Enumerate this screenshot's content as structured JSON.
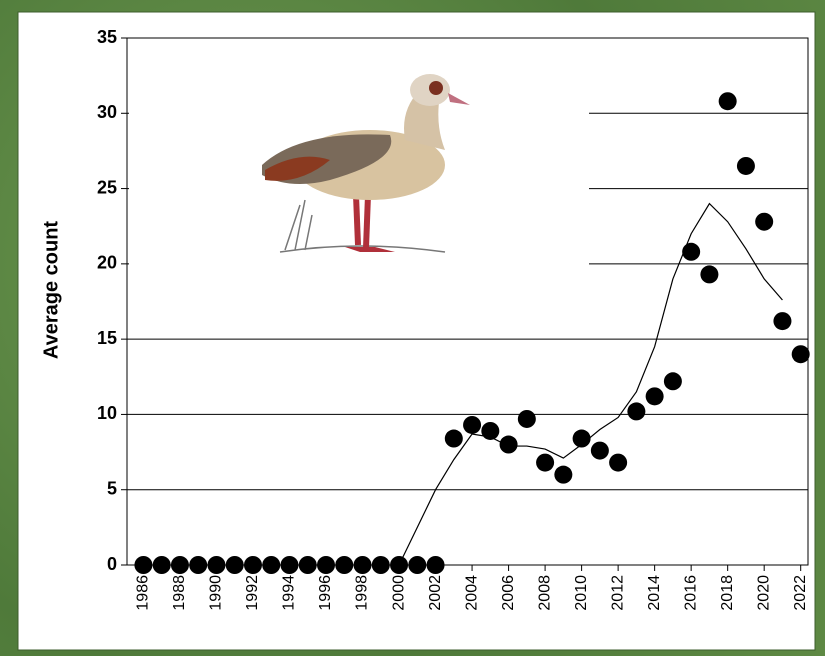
{
  "chart_data": {
    "type": "scatter",
    "ylabel": "Average count",
    "x": [
      1986,
      1987,
      1988,
      1989,
      1990,
      1991,
      1992,
      1993,
      1994,
      1995,
      1996,
      1997,
      1998,
      1999,
      2000,
      2001,
      2002,
      2003,
      2004,
      2005,
      2006,
      2007,
      2008,
      2009,
      2010,
      2011,
      2012,
      2013,
      2014,
      2015,
      2016,
      2017,
      2018,
      2019,
      2020,
      2021,
      2022
    ],
    "series": [
      {
        "type": "scatter",
        "color": "#000000",
        "values": [
          0,
          0,
          0,
          0,
          0,
          0,
          0,
          0,
          0,
          0,
          0,
          0,
          0,
          0,
          0,
          0,
          0,
          8.4,
          9.3,
          8.9,
          8.0,
          9.7,
          6.8,
          6.0,
          8.4,
          7.6,
          6.8,
          10.2,
          11.2,
          12.2,
          20.8,
          19.3,
          30.8,
          26.5,
          22.8,
          16.2,
          14.0
        ]
      },
      {
        "type": "line",
        "color": "#000000",
        "values": [
          null,
          null,
          null,
          null,
          null,
          null,
          null,
          null,
          null,
          null,
          null,
          null,
          null,
          null,
          0,
          2.5,
          5.0,
          7.0,
          8.7,
          8.5,
          7.9,
          7.9,
          7.7,
          7.1,
          8.0,
          9.0,
          9.8,
          11.5,
          14.5,
          19.0,
          22.0,
          24.0,
          22.8,
          21.0,
          19.0,
          17.6,
          null
        ]
      }
    ],
    "xlim": [
      1985.1,
      2022.4
    ],
    "ylim": [
      0,
      35
    ],
    "xticks": [
      1986,
      1988,
      1990,
      1992,
      1994,
      1996,
      1998,
      2000,
      2002,
      2004,
      2006,
      2008,
      2010,
      2012,
      2014,
      2016,
      2018,
      2020,
      2022
    ],
    "yticks": [
      0,
      5,
      10,
      15,
      20,
      25,
      30,
      35
    ],
    "grid": true
  }
}
